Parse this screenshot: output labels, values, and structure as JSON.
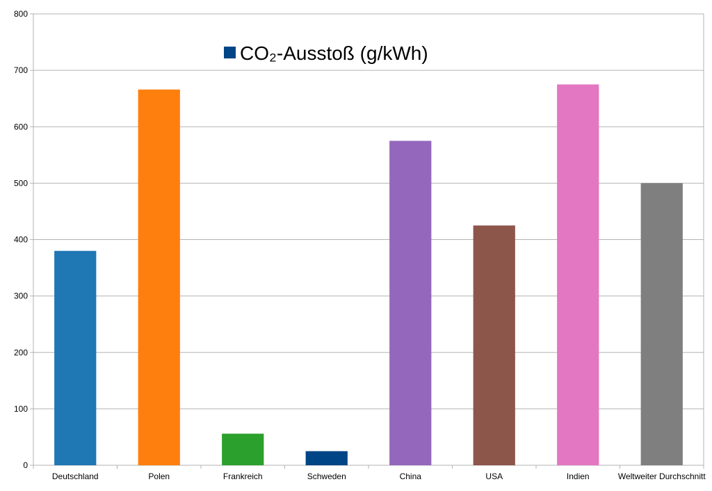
{
  "chart_data": {
    "type": "bar",
    "categories": [
      "Deutschland",
      "Polen",
      "Frankreich",
      "Schweden",
      "China",
      "USA",
      "Indien",
      "Weltweiter Durchschnitt"
    ],
    "series": [
      {
        "name": "CO₂-Ausstoß (g/kWh)",
        "values": [
          380,
          666,
          56,
          25,
          575,
          425,
          675,
          500
        ],
        "colors": [
          "#1f77b4",
          "#ff7f0e",
          "#2ca02c",
          "#004586",
          "#9467bd",
          "#8c564b",
          "#e377c2",
          "#7f7f7f"
        ]
      }
    ],
    "title": "",
    "xlabel": "",
    "ylabel": "",
    "ylim": [
      0,
      800
    ],
    "yticks": [
      0,
      100,
      200,
      300,
      400,
      500,
      600,
      700,
      800
    ],
    "grid": true,
    "legend": {
      "placement": "top-center",
      "label": "CO₂-Ausstoß (g/kWh)",
      "color": "#004586"
    }
  }
}
